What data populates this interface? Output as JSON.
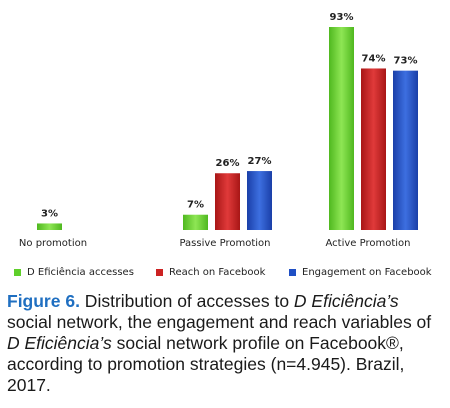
{
  "chart_data": {
    "type": "bar",
    "categories": [
      "No promotion",
      "Passive Promotion",
      "Active Promotion"
    ],
    "series": [
      {
        "name": "D Eficiência accesses",
        "values": [
          3,
          7,
          93
        ],
        "labels": [
          "3%",
          "7%",
          "93%"
        ],
        "color": "#5fcf2a"
      },
      {
        "name": "Reach on Facebook",
        "values": [
          null,
          26,
          74
        ],
        "labels": [
          "",
          "26%",
          "74%"
        ],
        "color": "#cc2222"
      },
      {
        "name": "Engagement on Facebook",
        "values": [
          null,
          27,
          73
        ],
        "labels": [
          "",
          "27%",
          "73%"
        ],
        "color": "#1f4fc4"
      }
    ],
    "ylim": [
      0,
      100
    ],
    "grid": false,
    "legend_position": "bottom"
  },
  "caption": {
    "label": "Figure 6.",
    "text_1": " Distribution of accesses to ",
    "italic_1": "D Eficiência’s",
    "text_2": " social network, the engagement and reach variables of ",
    "italic_2": "D Eficiência’s",
    "text_3": " social network profile on Facebook®, according to promotion strategies (n=4.945). Brazil, 2017."
  }
}
